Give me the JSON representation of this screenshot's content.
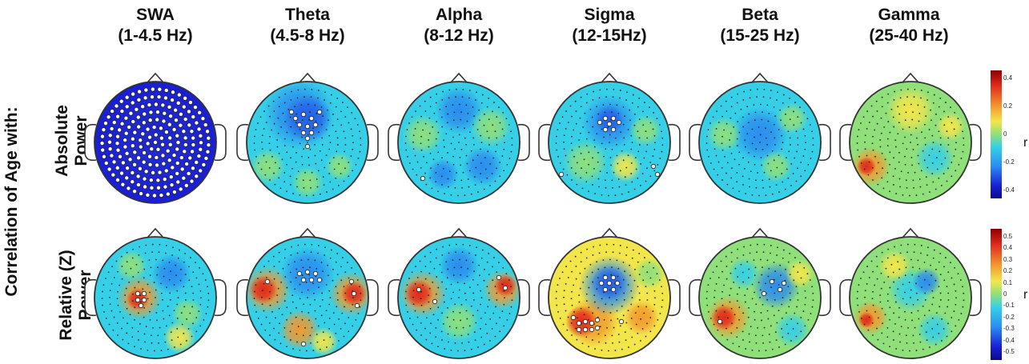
{
  "figure": {
    "side_label": "Correlation of Age with:",
    "rows": [
      {
        "label_line1": "Absolute",
        "label_line2": "Power"
      },
      {
        "label_line1": "Relative (Z)",
        "label_line2": "Power"
      }
    ],
    "bands": [
      {
        "name": "SWA",
        "range": "(1-4.5 Hz)"
      },
      {
        "name": "Theta",
        "range": "(4.5-8 Hz)"
      },
      {
        "name": "Alpha",
        "range": "(8-12 Hz)"
      },
      {
        "name": "Sigma",
        "range": "(12-15Hz)"
      },
      {
        "name": "Beta",
        "range": "(15-25 Hz)"
      },
      {
        "name": "Gamma",
        "range": "(25-40 Hz)"
      }
    ],
    "unit_label": "r",
    "colorbar_top_ticks": [
      "0.4",
      "0.2",
      "0",
      "-0.2",
      "-0.4"
    ],
    "colorbar_bottom_ticks": [
      "0.5",
      "0.4",
      "0.3",
      "0.2",
      "0.1",
      "0",
      "-0.1",
      "-0.2",
      "-0.3",
      "-0.4",
      "-0.5"
    ],
    "colors": {
      "deep_blue": "#1a1fd6",
      "blue": "#2b8cf0",
      "cyan": "#35d0e8",
      "green": "#8fe07a",
      "yellow": "#f3e64a",
      "orange": "#f29a2e",
      "red": "#e02a1c",
      "outline": "#333333"
    }
  }
}
